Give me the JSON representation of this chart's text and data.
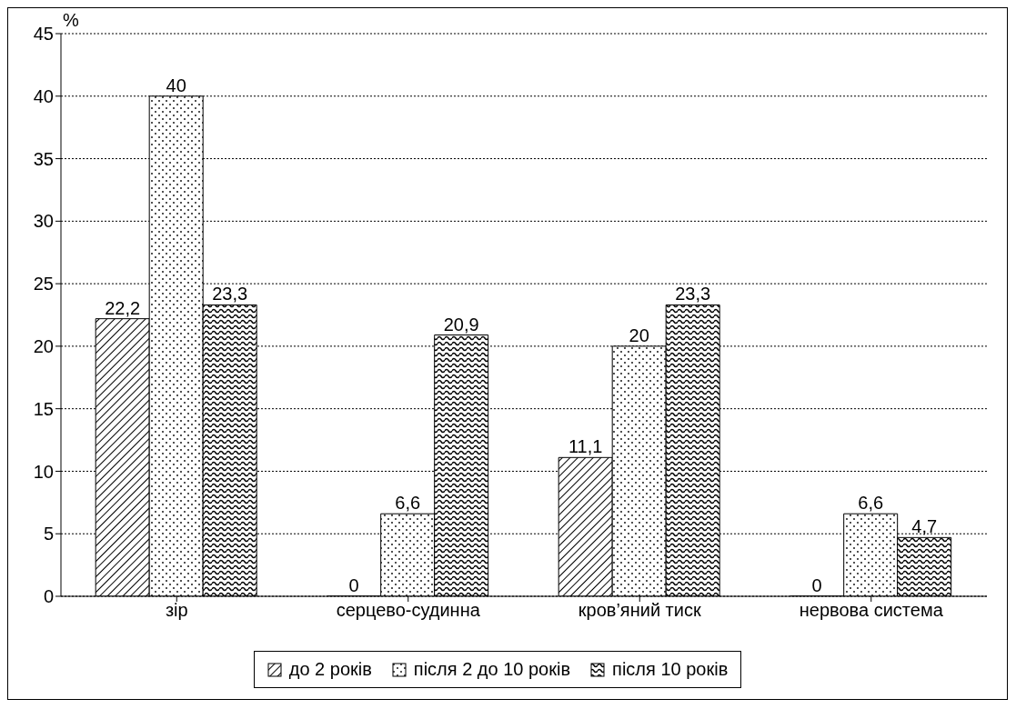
{
  "chart_data": {
    "type": "bar",
    "ylabel": "%",
    "categories": [
      "зір",
      "серцево-судинна",
      "кров’яний тиск",
      "нервова система"
    ],
    "series": [
      {
        "name": "до 2 років",
        "color": "#000000",
        "values": [
          22.2,
          0,
          11.1,
          0
        ],
        "value_labels": [
          "22,2",
          "0",
          "11,1",
          "0"
        ]
      },
      {
        "name": "після 2 до 10 років",
        "color": "#000000",
        "values": [
          40,
          6.6,
          20,
          6.6
        ],
        "value_labels": [
          "40",
          "6,6",
          "20",
          "6,6"
        ]
      },
      {
        "name": "після 10 років",
        "color": "#000000",
        "values": [
          23.3,
          20.9,
          23.3,
          4.7
        ],
        "value_labels": [
          "23,3",
          "20,9",
          "23,3",
          "4,7"
        ]
      }
    ],
    "ylim": [
      0,
      45
    ],
    "yticks": [
      0,
      5,
      10,
      15,
      20,
      25,
      30,
      35,
      40,
      45
    ],
    "grid": "y",
    "legend": "bottom"
  }
}
